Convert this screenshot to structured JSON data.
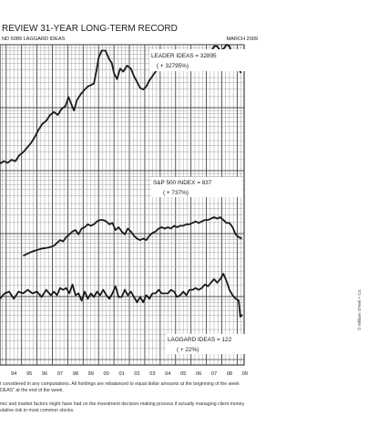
{
  "header": {
    "title": "REVIEW 31-YEAR LONG-TERM RECORD",
    "subtitle": "ND 5089 LAGGARD IDEAS",
    "date": "MARCH 2009"
  },
  "footnotes": {
    "line1": "t considered in any computations. All holdings are rebalanced to equal dollar amounts at the beginning of the week",
    "line2": "DEAS\" at the end of the week.",
    "line3": "mic and market factors might have had on the investment decision-making process if actually managing client money",
    "line4": "ulative risk in most common stocks."
  },
  "copyright": "© William O'Neil + Co.",
  "chart_data": {
    "type": "line",
    "x_ticks": [
      "94",
      "95",
      "96",
      "97",
      "98",
      "99",
      "00",
      "01",
      "02",
      "03",
      "04",
      "05",
      "06",
      "07",
      "08",
      "09"
    ],
    "x_range": [
      1993.6,
      2009.45
    ],
    "grid": true,
    "series": [
      {
        "name": "LEADER IDEAS",
        "label": "LEADER IDEAS = 32895",
        "sublabel": "( + 32795%)",
        "color": "#1a1a1a",
        "points": [
          [
            1993.6,
            20.5
          ],
          [
            1993.85,
            22
          ],
          [
            1994.1,
            21
          ],
          [
            1994.35,
            23
          ],
          [
            1994.6,
            22
          ],
          [
            1994.85,
            26
          ],
          [
            1995.1,
            28
          ],
          [
            1995.35,
            31
          ],
          [
            1995.6,
            34
          ],
          [
            1995.85,
            38
          ],
          [
            1996.1,
            43
          ],
          [
            1996.35,
            47
          ],
          [
            1996.6,
            49
          ],
          [
            1996.85,
            53
          ],
          [
            1997.1,
            55
          ],
          [
            1997.35,
            53
          ],
          [
            1997.6,
            57
          ],
          [
            1997.85,
            59
          ],
          [
            1998.05,
            65
          ],
          [
            1998.2,
            61
          ],
          [
            1998.4,
            56
          ],
          [
            1998.6,
            63
          ],
          [
            1998.85,
            67
          ],
          [
            1999.1,
            70
          ],
          [
            1999.3,
            72
          ],
          [
            1999.5,
            73
          ],
          [
            1999.7,
            74
          ],
          [
            1999.85,
            82
          ],
          [
            2000.0,
            91
          ],
          [
            2000.2,
            96
          ],
          [
            2000.45,
            96
          ],
          [
            2000.7,
            90
          ],
          [
            2000.85,
            88
          ],
          [
            2001.0,
            81
          ],
          [
            2001.2,
            77
          ],
          [
            2001.4,
            84
          ],
          [
            2001.6,
            82
          ],
          [
            2001.85,
            86
          ],
          [
            2002.1,
            84
          ],
          [
            2002.3,
            79
          ],
          [
            2002.5,
            75
          ],
          [
            2002.7,
            71
          ],
          [
            2002.9,
            70
          ],
          [
            2003.1,
            72
          ],
          [
            2003.3,
            76
          ],
          [
            2003.5,
            79
          ],
          [
            2003.7,
            82
          ],
          [
            2003.9,
            84
          ],
          [
            2004.1,
            86
          ],
          [
            2004.3,
            86
          ],
          [
            2004.5,
            87
          ],
          [
            2004.7,
            85
          ],
          [
            2004.9,
            88
          ],
          [
            2005.1,
            87
          ],
          [
            2005.3,
            88
          ],
          [
            2005.5,
            87
          ],
          [
            2005.7,
            90
          ],
          [
            2005.9,
            94
          ],
          [
            2006.1,
            93
          ],
          [
            2006.3,
            94
          ],
          [
            2006.5,
            93
          ],
          [
            2006.7,
            96
          ],
          [
            2006.9,
            95
          ],
          [
            2007.1,
            94
          ],
          [
            2007.3,
            95
          ],
          [
            2007.5,
            99
          ],
          [
            2007.7,
            99
          ],
          [
            2007.9,
            96
          ],
          [
            2008.1,
            97
          ],
          [
            2008.3,
            100
          ],
          [
            2008.5,
            99
          ],
          [
            2008.7,
            93
          ],
          [
            2008.9,
            91
          ],
          [
            2009.1,
            84
          ],
          [
            2009.25,
            81
          ]
        ]
      },
      {
        "name": "S&P 500 INDEX",
        "label": "S&P 500 INDEX =  837",
        "sublabel": "( +  737%)",
        "color": "#1a1a1a",
        "points": [
          [
            1995.1,
            27
          ],
          [
            1995.4,
            28.5
          ],
          [
            1995.7,
            30
          ],
          [
            1996.0,
            31
          ],
          [
            1996.3,
            32
          ],
          [
            1996.6,
            32.5
          ],
          [
            1996.85,
            33
          ],
          [
            1997.1,
            34
          ],
          [
            1997.3,
            36
          ],
          [
            1997.5,
            38
          ],
          [
            1997.7,
            37
          ],
          [
            1997.9,
            40
          ],
          [
            1998.1,
            42
          ],
          [
            1998.3,
            44
          ],
          [
            1998.5,
            45
          ],
          [
            1998.7,
            42
          ],
          [
            1998.9,
            46
          ],
          [
            1999.1,
            47
          ],
          [
            1999.3,
            49
          ],
          [
            1999.5,
            48
          ],
          [
            1999.7,
            49
          ],
          [
            1999.9,
            51
          ],
          [
            2000.1,
            52
          ],
          [
            2000.3,
            52
          ],
          [
            2000.5,
            51
          ],
          [
            2000.7,
            49
          ],
          [
            2000.9,
            50
          ],
          [
            2001.1,
            45
          ],
          [
            2001.3,
            47
          ],
          [
            2001.5,
            44
          ],
          [
            2001.7,
            42
          ],
          [
            2001.9,
            46
          ],
          [
            2002.1,
            44
          ],
          [
            2002.3,
            41
          ],
          [
            2002.5,
            39
          ],
          [
            2002.7,
            38
          ],
          [
            2002.9,
            39
          ],
          [
            2003.1,
            38
          ],
          [
            2003.3,
            41
          ],
          [
            2003.5,
            43
          ],
          [
            2003.7,
            44
          ],
          [
            2003.9,
            46
          ],
          [
            2004.1,
            47
          ],
          [
            2004.3,
            46
          ],
          [
            2004.5,
            47
          ],
          [
            2004.7,
            46
          ],
          [
            2004.9,
            48
          ],
          [
            2005.1,
            47
          ],
          [
            2005.3,
            48
          ],
          [
            2005.5,
            48
          ],
          [
            2005.7,
            49
          ],
          [
            2005.9,
            49
          ],
          [
            2006.1,
            50
          ],
          [
            2006.3,
            51
          ],
          [
            2006.5,
            50
          ],
          [
            2006.7,
            51
          ],
          [
            2006.9,
            52
          ],
          [
            2007.1,
            52
          ],
          [
            2007.3,
            53
          ],
          [
            2007.5,
            54
          ],
          [
            2007.7,
            53
          ],
          [
            2007.9,
            54
          ],
          [
            2008.1,
            52
          ],
          [
            2008.3,
            50
          ],
          [
            2008.5,
            50
          ],
          [
            2008.7,
            47
          ],
          [
            2008.9,
            42
          ],
          [
            2009.1,
            40
          ],
          [
            2009.3,
            39
          ]
        ]
      },
      {
        "name": "LAGGARD IDEAS",
        "label": "LAGGARD IDEAS =  122",
        "sublabel": "( +  22%)",
        "color": "#1a1a1a",
        "points": [
          [
            1993.6,
            44
          ],
          [
            1993.9,
            47
          ],
          [
            1994.2,
            48
          ],
          [
            1994.5,
            44
          ],
          [
            1994.8,
            48
          ],
          [
            1995.1,
            47
          ],
          [
            1995.4,
            49
          ],
          [
            1995.7,
            47
          ],
          [
            1996.0,
            48
          ],
          [
            1996.3,
            45
          ],
          [
            1996.6,
            49
          ],
          [
            1996.9,
            46
          ],
          [
            1997.1,
            48
          ],
          [
            1997.3,
            46
          ],
          [
            1997.5,
            50
          ],
          [
            1997.7,
            49
          ],
          [
            1997.9,
            50
          ],
          [
            1998.1,
            47
          ],
          [
            1998.3,
            52
          ],
          [
            1998.5,
            46
          ],
          [
            1998.7,
            47
          ],
          [
            1998.9,
            43
          ],
          [
            1999.1,
            48
          ],
          [
            1999.3,
            44
          ],
          [
            1999.5,
            47
          ],
          [
            1999.7,
            45
          ],
          [
            1999.9,
            48
          ],
          [
            2000.1,
            46
          ],
          [
            2000.3,
            49
          ],
          [
            2000.5,
            46
          ],
          [
            2000.7,
            44
          ],
          [
            2000.9,
            47
          ],
          [
            2001.1,
            51
          ],
          [
            2001.3,
            45
          ],
          [
            2001.5,
            45
          ],
          [
            2001.7,
            49
          ],
          [
            2001.9,
            46
          ],
          [
            2002.1,
            48
          ],
          [
            2002.3,
            45
          ],
          [
            2002.5,
            42
          ],
          [
            2002.7,
            45
          ],
          [
            2002.9,
            42
          ],
          [
            2003.1,
            46
          ],
          [
            2003.3,
            44
          ],
          [
            2003.5,
            47
          ],
          [
            2003.7,
            47
          ],
          [
            2003.9,
            49
          ],
          [
            2004.1,
            47
          ],
          [
            2004.3,
            47
          ],
          [
            2004.5,
            47
          ],
          [
            2004.7,
            49
          ],
          [
            2004.9,
            48
          ],
          [
            2005.1,
            45
          ],
          [
            2005.3,
            46
          ],
          [
            2005.5,
            48
          ],
          [
            2005.7,
            46
          ],
          [
            2005.9,
            49
          ],
          [
            2006.1,
            49
          ],
          [
            2006.3,
            50
          ],
          [
            2006.5,
            49
          ],
          [
            2006.7,
            50
          ],
          [
            2006.9,
            52
          ],
          [
            2007.1,
            51
          ],
          [
            2007.3,
            53
          ],
          [
            2007.5,
            55
          ],
          [
            2007.7,
            53
          ],
          [
            2007.9,
            55
          ],
          [
            2008.1,
            58
          ],
          [
            2008.3,
            54
          ],
          [
            2008.5,
            49
          ],
          [
            2008.7,
            46
          ],
          [
            2008.9,
            44
          ],
          [
            2009.1,
            43
          ],
          [
            2009.2,
            34
          ],
          [
            2009.35,
            35
          ]
        ]
      }
    ]
  }
}
